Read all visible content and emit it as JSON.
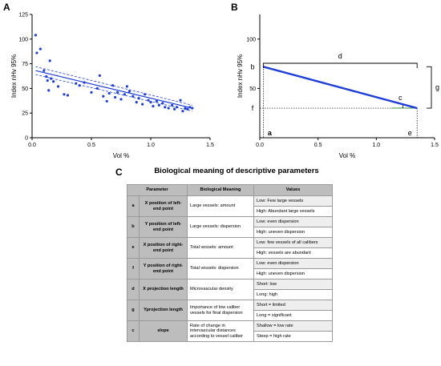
{
  "panels": {
    "a": "A",
    "b": "B",
    "c": "C"
  },
  "chart_data": [
    {
      "type": "scatter",
      "panel": "A",
      "xlabel": "Vol %",
      "ylabel": "Index nHv 95%",
      "xlim": [
        0,
        1.5
      ],
      "ylim": [
        0,
        125
      ],
      "x_ticks": [
        "0.0",
        "0.5",
        "1.0",
        "1.5"
      ],
      "y_ticks": [
        "0",
        "25",
        "50",
        "75",
        "100",
        "125"
      ],
      "points": [
        [
          0.03,
          104
        ],
        [
          0.04,
          86
        ],
        [
          0.07,
          90
        ],
        [
          0.1,
          68
        ],
        [
          0.12,
          62
        ],
        [
          0.13,
          58
        ],
        [
          0.14,
          48
        ],
        [
          0.15,
          78
        ],
        [
          0.16,
          60
        ],
        [
          0.18,
          57
        ],
        [
          0.22,
          52
        ],
        [
          0.27,
          44
        ],
        [
          0.3,
          43
        ],
        [
          0.37,
          55
        ],
        [
          0.4,
          53
        ],
        [
          0.44,
          56
        ],
        [
          0.5,
          46
        ],
        [
          0.55,
          50
        ],
        [
          0.57,
          63
        ],
        [
          0.6,
          42
        ],
        [
          0.63,
          37
        ],
        [
          0.65,
          45
        ],
        [
          0.68,
          53
        ],
        [
          0.7,
          41
        ],
        [
          0.72,
          46
        ],
        [
          0.75,
          39
        ],
        [
          0.78,
          44
        ],
        [
          0.8,
          52
        ],
        [
          0.82,
          47
        ],
        [
          0.85,
          42
        ],
        [
          0.88,
          36
        ],
        [
          0.9,
          40
        ],
        [
          0.93,
          34
        ],
        [
          0.95,
          44
        ],
        [
          0.98,
          38
        ],
        [
          1.0,
          36
        ],
        [
          1.02,
          32
        ],
        [
          1.05,
          37
        ],
        [
          1.07,
          33
        ],
        [
          1.1,
          35
        ],
        [
          1.12,
          31
        ],
        [
          1.15,
          30
        ],
        [
          1.18,
          33
        ],
        [
          1.2,
          29
        ],
        [
          1.22,
          31
        ],
        [
          1.25,
          38
        ],
        [
          1.27,
          27
        ],
        [
          1.29,
          30
        ],
        [
          1.31,
          29
        ],
        [
          1.33,
          31
        ],
        [
          1.35,
          30
        ]
      ],
      "fit": {
        "x": [
          0.03,
          1.35
        ],
        "y": [
          68,
          30
        ]
      },
      "ci_upper": {
        "x": [
          0.03,
          1.35
        ],
        "y": [
          72,
          33
        ]
      },
      "ci_lower": {
        "x": [
          0.03,
          1.35
        ],
        "y": [
          64,
          27
        ]
      }
    },
    {
      "type": "line",
      "panel": "B",
      "xlabel": "Vol %",
      "ylabel": "Index nHv 95%",
      "xlim": [
        0,
        1.5
      ],
      "ylim": [
        0,
        125
      ],
      "x_ticks": [
        "0.0",
        "0.5",
        "1.0",
        "1.5"
      ],
      "y_ticks": [
        "100",
        "50"
      ],
      "line": {
        "x": [
          0.03,
          1.35
        ],
        "y": [
          72,
          30
        ]
      },
      "annotations": {
        "b": "b",
        "f": "f",
        "a": "a",
        "e": "e",
        "d": "d",
        "g": "g",
        "c": "c"
      }
    }
  ],
  "table": {
    "title": "Biological meaning of descriptive parameters",
    "headers": {
      "param": "Parameter",
      "meaning": "Biological Meaning",
      "values": "Values"
    },
    "rows": [
      {
        "sym": "a",
        "name": "X position of left-end point",
        "meaning": "Large vessels: amount",
        "v1": "Low: Few large vessels",
        "v2": "High: Abundant large vessels"
      },
      {
        "sym": "b",
        "name": "Y position of left-end point",
        "meaning": "Large vessels: dispersion",
        "v1": "Low: even dispersion",
        "v2": "High: uneven dispersion"
      },
      {
        "sym": "e",
        "name": "X position of right-end point",
        "meaning": "Total vessels: amount",
        "v1": "Low: few vessels of all calibers",
        "v2": "High: vessels are abundant"
      },
      {
        "sym": "f",
        "name": "Y position of right-end point",
        "meaning": "Total vessels: dispersion",
        "v1": "Low: even dispersion",
        "v2": "High: uneven dispersion"
      },
      {
        "sym": "d",
        "name": "X projection length",
        "meaning": "Microvascular density",
        "v1": "Short: low",
        "v2": "Long: high"
      },
      {
        "sym": "g",
        "name": "Yprojection length",
        "meaning": "Importance of low caliber vessels for final dispersion",
        "v1": "Short = limited",
        "v2": "Long = significant"
      },
      {
        "sym": "c",
        "name": "slope",
        "meaning": "Rate of change in intervascular distances according to vessel caliber",
        "v1": "Shallow = low rate",
        "v2": "Steep = high rate"
      }
    ]
  }
}
